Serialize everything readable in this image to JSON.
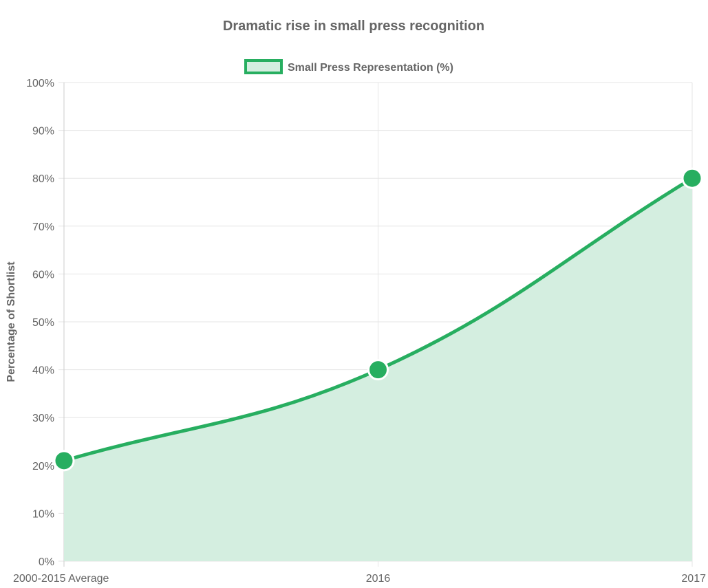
{
  "chart_data": {
    "type": "area",
    "title": "Dramatic rise in small press recognition",
    "xlabel": "",
    "ylabel": "Percentage of Shortlist",
    "categories": [
      "2000-2015 Average",
      "2016",
      "2017"
    ],
    "series": [
      {
        "name": "Small Press Representation (%)",
        "values": [
          21,
          40,
          80
        ]
      }
    ],
    "ylim": [
      0,
      100
    ],
    "yticks": [
      "0%",
      "10%",
      "20%",
      "30%",
      "40%",
      "50%",
      "60%",
      "70%",
      "80%",
      "90%",
      "100%"
    ],
    "grid": true,
    "legend": "top-center",
    "colors": {
      "line": "#27ae60",
      "fill": "#d4eee0",
      "grid": "#e5e5e5",
      "text": "#666666",
      "point_border": "#ffffff"
    }
  }
}
